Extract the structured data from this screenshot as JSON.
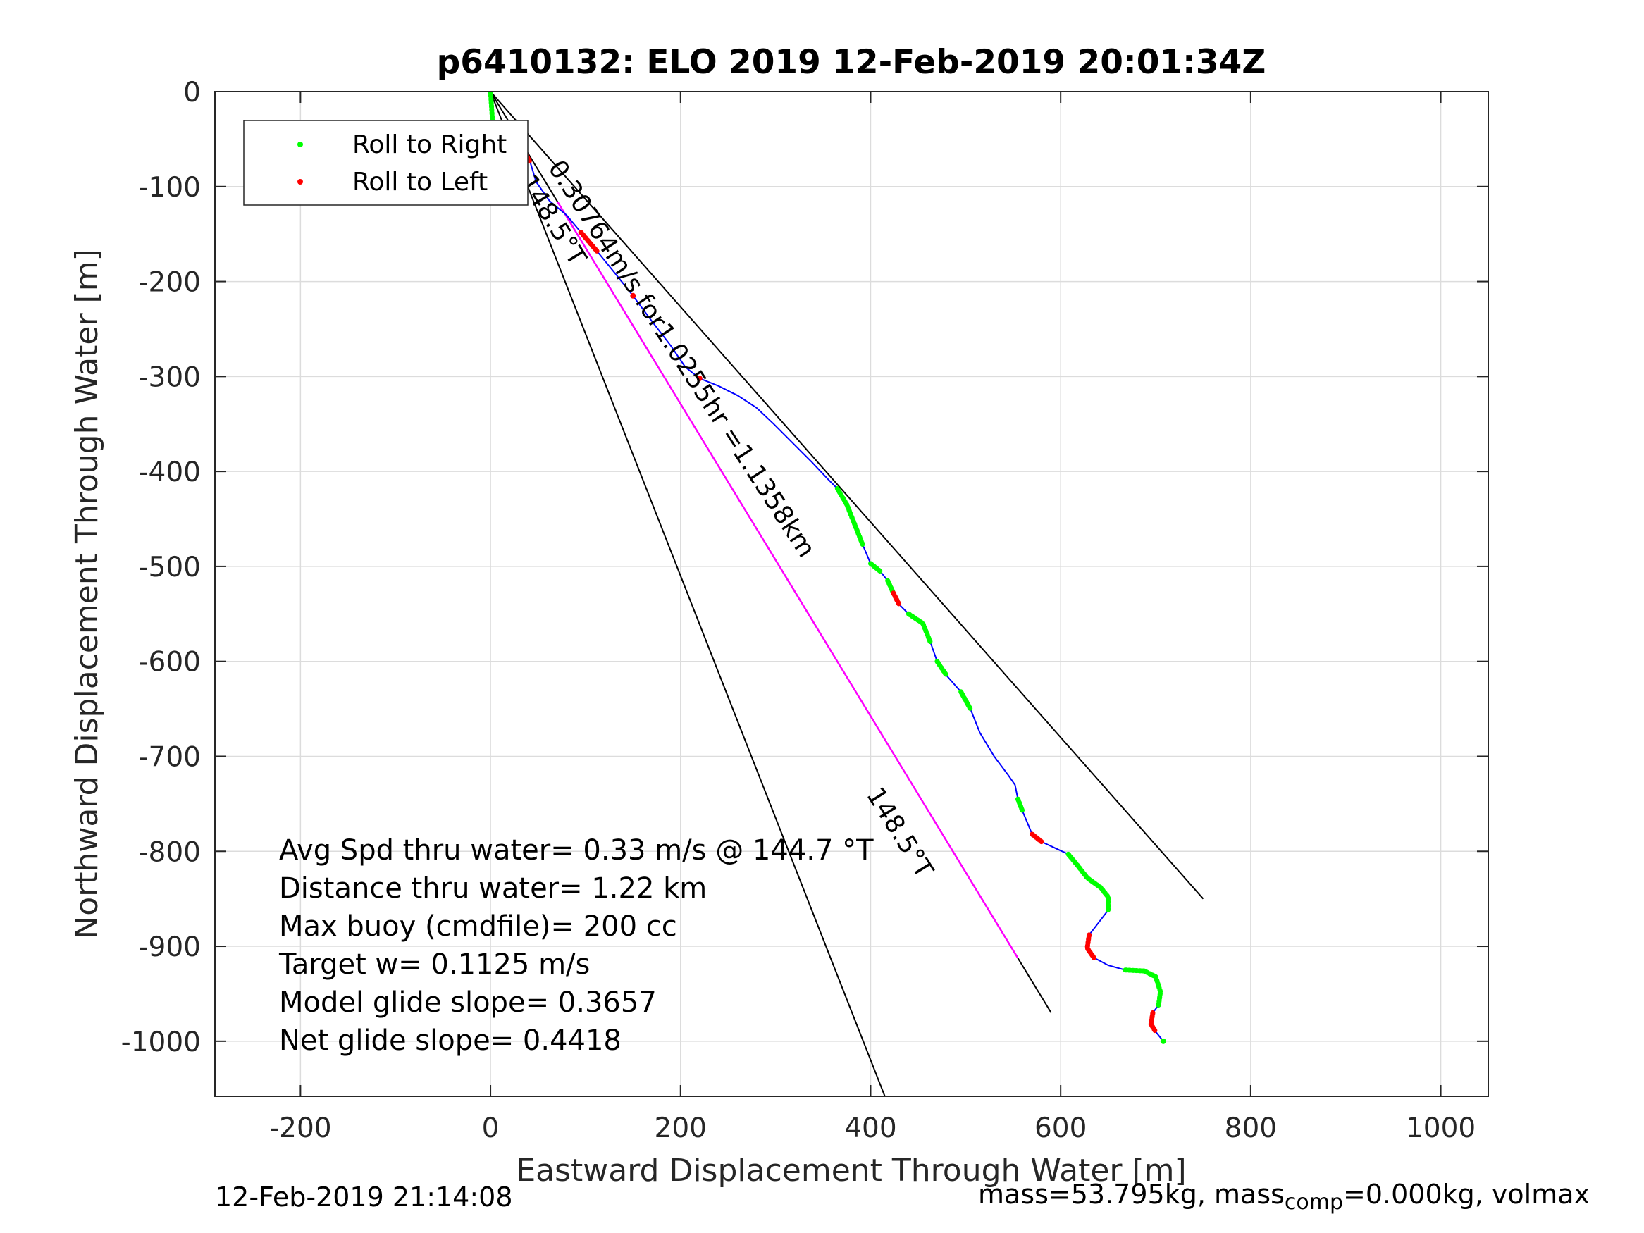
{
  "chart_data": {
    "type": "line",
    "title": "p6410132: ELO 2019 12-Feb-2019 20:01:34Z",
    "xlabel": "Eastward Displacement Through Water [m]",
    "ylabel": "Northward Displacement Through Water [m]",
    "xlim": [
      -290,
      1050
    ],
    "ylim": [
      -1058,
      0
    ],
    "xticks": [
      -200,
      0,
      200,
      400,
      600,
      800,
      1000
    ],
    "yticks": [
      0,
      -100,
      -200,
      -300,
      -400,
      -500,
      -600,
      -700,
      -800,
      -900,
      -1000
    ],
    "xtick_labels": [
      "-200",
      "0",
      "200",
      "400",
      "600",
      "800",
      "1000"
    ],
    "ytick_labels": [
      "0",
      "-100",
      "-200",
      "-300",
      "-400",
      "-500",
      "-600",
      "-700",
      "-800",
      "-900",
      "-1000"
    ],
    "grid": true,
    "legend": {
      "placement": "top-left",
      "entries": [
        {
          "label": "Roll to Right",
          "color": "#00ff00"
        },
        {
          "label": "Roll to Left",
          "color": "#ff0000"
        }
      ]
    },
    "colors": {
      "track": "#0000ff",
      "roll_right": "#00ff00",
      "roll_left": "#ff0000",
      "heading_line": "#ff00ff",
      "reference_lines": "#000000"
    },
    "track": [
      [
        0,
        0
      ],
      [
        2,
        -30
      ],
      [
        8,
        -45
      ],
      [
        20,
        -55
      ],
      [
        35,
        -62
      ],
      [
        42,
        -75
      ],
      [
        48,
        -95
      ],
      [
        62,
        -115
      ],
      [
        80,
        -130
      ],
      [
        95,
        -148
      ],
      [
        112,
        -168
      ],
      [
        130,
        -190
      ],
      [
        150,
        -215
      ],
      [
        170,
        -242
      ],
      [
        190,
        -268
      ],
      [
        205,
        -290
      ],
      [
        220,
        -302
      ],
      [
        240,
        -310
      ],
      [
        260,
        -320
      ],
      [
        280,
        -333
      ],
      [
        298,
        -350
      ],
      [
        318,
        -370
      ],
      [
        338,
        -390
      ],
      [
        355,
        -408
      ],
      [
        365,
        -418
      ],
      [
        375,
        -435
      ],
      [
        383,
        -455
      ],
      [
        392,
        -478
      ],
      [
        400,
        -497
      ],
      [
        410,
        -505
      ],
      [
        418,
        -515
      ],
      [
        424,
        -528
      ],
      [
        430,
        -540
      ],
      [
        440,
        -550
      ],
      [
        455,
        -560
      ],
      [
        463,
        -580
      ],
      [
        470,
        -600
      ],
      [
        480,
        -615
      ],
      [
        495,
        -632
      ],
      [
        505,
        -650
      ],
      [
        515,
        -675
      ],
      [
        530,
        -700
      ],
      [
        545,
        -720
      ],
      [
        552,
        -730
      ],
      [
        555,
        -745
      ],
      [
        560,
        -758
      ],
      [
        565,
        -770
      ],
      [
        570,
        -782
      ],
      [
        580,
        -790
      ],
      [
        595,
        -797
      ],
      [
        608,
        -803
      ],
      [
        618,
        -815
      ],
      [
        628,
        -828
      ],
      [
        642,
        -838
      ],
      [
        650,
        -848
      ],
      [
        650,
        -862
      ],
      [
        640,
        -875
      ],
      [
        630,
        -888
      ],
      [
        628,
        -902
      ],
      [
        635,
        -912
      ],
      [
        650,
        -920
      ],
      [
        668,
        -925
      ],
      [
        688,
        -926
      ],
      [
        700,
        -932
      ],
      [
        705,
        -948
      ],
      [
        703,
        -962
      ],
      [
        697,
        -970
      ],
      [
        695,
        -982
      ],
      [
        700,
        -990
      ],
      [
        708,
        -1000
      ]
    ],
    "roll_right_segments": [
      [
        0,
        1,
        2,
        3
      ],
      [
        24,
        25,
        26,
        27
      ],
      [
        28,
        29
      ],
      [
        30,
        31
      ],
      [
        33,
        34,
        35
      ],
      [
        36,
        37
      ],
      [
        38,
        39
      ],
      [
        44,
        45
      ],
      [
        50,
        51,
        52,
        53,
        54,
        55
      ],
      [
        61,
        62,
        63,
        64,
        65
      ],
      [
        69
      ]
    ],
    "roll_left_segments": [
      [
        4,
        5
      ],
      [
        9,
        10
      ],
      [
        12
      ],
      [
        16
      ],
      [
        31,
        32
      ],
      [
        47,
        48
      ],
      [
        57,
        58,
        59
      ],
      [
        66,
        67,
        68
      ]
    ],
    "heading_line": {
      "from": [
        0,
        0
      ],
      "to": [
        590,
        -970
      ],
      "label": "148.5°T",
      "color": "#ff00ff"
    },
    "reference_lines": [
      {
        "from": [
          0,
          0
        ],
        "to": [
          750,
          -850
        ]
      },
      {
        "from": [
          0,
          0
        ],
        "to": [
          415,
          -1058
        ]
      }
    ],
    "annotations": [
      {
        "text": "0.30764m/s for1.0255hr =1.1358km",
        "at": [
          60,
          -80
        ],
        "angle": 57
      },
      {
        "text": "148.5°T",
        "at": [
          30,
          -95
        ],
        "angle": 58
      },
      {
        "text": "148.5°T",
        "at": [
          395,
          -740
        ],
        "angle": 58
      }
    ],
    "stats": [
      "Avg Spd thru water=  0.33 m/s @ 144.7 °T",
      "Distance thru water=  1.22 km",
      "Max buoy (cmdfile)= 200 cc",
      "Target w= 0.1125 m/s",
      "Model glide slope= 0.3657",
      "Net glide slope= 0.4418"
    ],
    "footer_left": "12-Feb-2019 21:14:08",
    "footer_right": {
      "pre": "mass=53.795kg, mass",
      "sub": "comp",
      "post": "=0.000kg, volmax"
    }
  }
}
